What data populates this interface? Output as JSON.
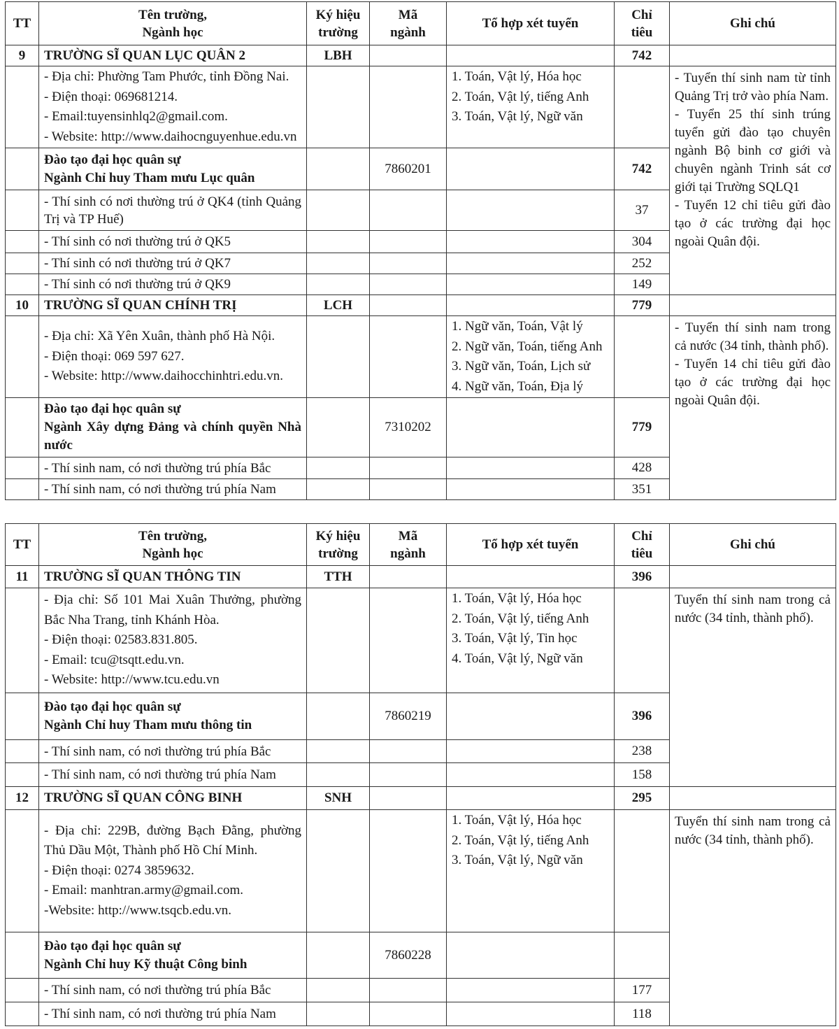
{
  "header": {
    "tt": "TT",
    "name": [
      "Tên trường,",
      "Ngành học"
    ],
    "code": [
      "Ký hiệu",
      "trường"
    ],
    "major_code": [
      "Mã",
      "ngành"
    ],
    "combos": "Tổ hợp xét tuyển",
    "quota": [
      "Chỉ",
      "tiêu"
    ],
    "notes": "Ghi chú"
  },
  "tables": [
    {
      "schools": [
        {
          "tt": "9",
          "name": "TRƯỜNG SĨ QUAN LỤC QUÂN 2",
          "code": "LBH",
          "quota": "742",
          "address": [
            "- Địa chỉ: Phường Tam Phước, tỉnh Đồng Nai.",
            "- Điện thoại: 069681214.",
            "- Email:tuyensinhlq2@gmail.com.",
            "- Website: http://www.daihocnguyenhue.edu.vn"
          ],
          "combos": [
            "1. Toán, Vật lý, Hóa học",
            "2. Toán, Vật lý, tiếng Anh",
            "3. Toán, Vật lý, Ngữ văn"
          ],
          "notes": [
            "- Tuyển thí sinh nam từ tỉnh Quảng Trị trở vào phía Nam.",
            "- Tuyển 25 thí sinh trúng tuyển gửi đào tạo chuyên ngành Bộ binh cơ giới và chuyên ngành Trinh sát cơ giới tại Trường SQLQ1",
            "- Tuyển 12 chỉ tiêu gửi đào tạo ở các trường đại học ngoài Quân đội."
          ],
          "program": {
            "title": "Đào tạo đại học quân sự",
            "major": "Ngành Chỉ huy Tham mưu Lục quân",
            "major_code": "7860201",
            "quota": "742"
          },
          "subrows": [
            {
              "label": "- Thí sinh có nơi thường trú ở QK4 (tỉnh Quảng Trị và TP Huế)",
              "quota": "37"
            },
            {
              "label": "- Thí sinh có nơi thường trú ở QK5",
              "quota": "304"
            },
            {
              "label": "- Thí sinh có nơi thường trú ở QK7",
              "quota": "252"
            },
            {
              "label": "- Thí sinh có nơi thường trú ở QK9",
              "quota": "149"
            }
          ]
        },
        {
          "tt": "10",
          "name": "TRƯỜNG SĨ QUAN CHÍNH TRỊ",
          "code": "LCH",
          "quota": "779",
          "address": [
            "- Địa chỉ: Xã Yên Xuân, thành phố Hà Nội.",
            "- Điện thoại: 069 597 627.",
            "- Website: http://www.daihocchinhtri.edu.vn."
          ],
          "combos": [
            "1. Ngữ văn, Toán, Vật lý",
            "2. Ngữ văn, Toán, tiếng Anh",
            "3. Ngữ văn, Toán, Lịch sử",
            "4. Ngữ văn, Toán, Địa lý"
          ],
          "notes": [
            "- Tuyển thí sinh nam trong cả nước (34 tỉnh, thành phố).",
            "- Tuyển 14 chỉ tiêu gửi đào tạo ở các trường đại học ngoài Quân đội."
          ],
          "program": {
            "title": "Đào tạo đại học quân sự",
            "major": "Ngành Xây dựng Đảng và chính quyền Nhà nước",
            "major_code": "7310202",
            "quota": "779"
          },
          "subrows": [
            {
              "label": "- Thí sinh nam, có nơi thường trú phía Bắc",
              "quota": "428"
            },
            {
              "label": "- Thí sinh nam, có nơi thường trú phía Nam",
              "quota": "351"
            }
          ]
        }
      ]
    },
    {
      "schools": [
        {
          "tt": "11",
          "name": "TRƯỜNG SĨ QUAN THÔNG TIN",
          "code": "TTH",
          "quota": "396",
          "address": [
            "- Địa chỉ: Số 101 Mai Xuân Thưởng, phường Bắc Nha Trang, tỉnh Khánh Hòa.",
            "- Điện thoại: 02583.831.805.",
            "- Email: tcu@tsqtt.edu.vn.",
            "- Website: http://www.tcu.edu.vn"
          ],
          "combos": [
            "1. Toán, Vật lý, Hóa học",
            "2. Toán, Vật lý, tiếng Anh",
            "3. Toán, Vật lý, Tin học",
            "4. Toán, Vật lý, Ngữ văn"
          ],
          "notes": [
            "Tuyển thí sinh nam trong cả nước (34 tỉnh, thành phố)."
          ],
          "program": {
            "title": "Đào tạo đại học quân sự",
            "major": "Ngành Chỉ huy Tham mưu thông tin",
            "major_code": "7860219",
            "quota": "396"
          },
          "subrows": [
            {
              "label": "- Thí sinh nam, có nơi thường trú phía Bắc",
              "quota": "238"
            },
            {
              "label": "- Thí sinh nam, có nơi thường trú phía Nam",
              "quota": "158"
            }
          ]
        },
        {
          "tt": "12",
          "name": "TRƯỜNG SĨ QUAN CÔNG BINH",
          "code": "SNH",
          "quota": "295",
          "address": [
            "- Địa chỉ: 229B, đường Bạch Đằng, phường Thủ Dầu Một, Thành phố Hồ Chí Minh.",
            "- Điện thoại: 0274 3859632.",
            "- Email: manhtran.army@gmail.com.",
            "-Website: http://www.tsqcb.edu.vn."
          ],
          "combos": [
            "1. Toán, Vật lý, Hóa học",
            "2. Toán, Vật lý, tiếng Anh",
            "3. Toán, Vật lý, Ngữ văn"
          ],
          "notes": [
            "Tuyển thí sinh nam trong cả nước (34 tỉnh, thành phố)."
          ],
          "program": {
            "title": "Đào tạo đại học quân sự",
            "major": "Ngành Chỉ huy Kỹ thuật Công binh",
            "major_code": "7860228",
            "quota": ""
          },
          "subrows": [
            {
              "label": "- Thí sinh nam, có nơi thường trú phía Bắc",
              "quota": "177"
            },
            {
              "label": "- Thí sinh nam, có nơi thường trú phía Nam",
              "quota": "118"
            }
          ]
        }
      ]
    }
  ]
}
